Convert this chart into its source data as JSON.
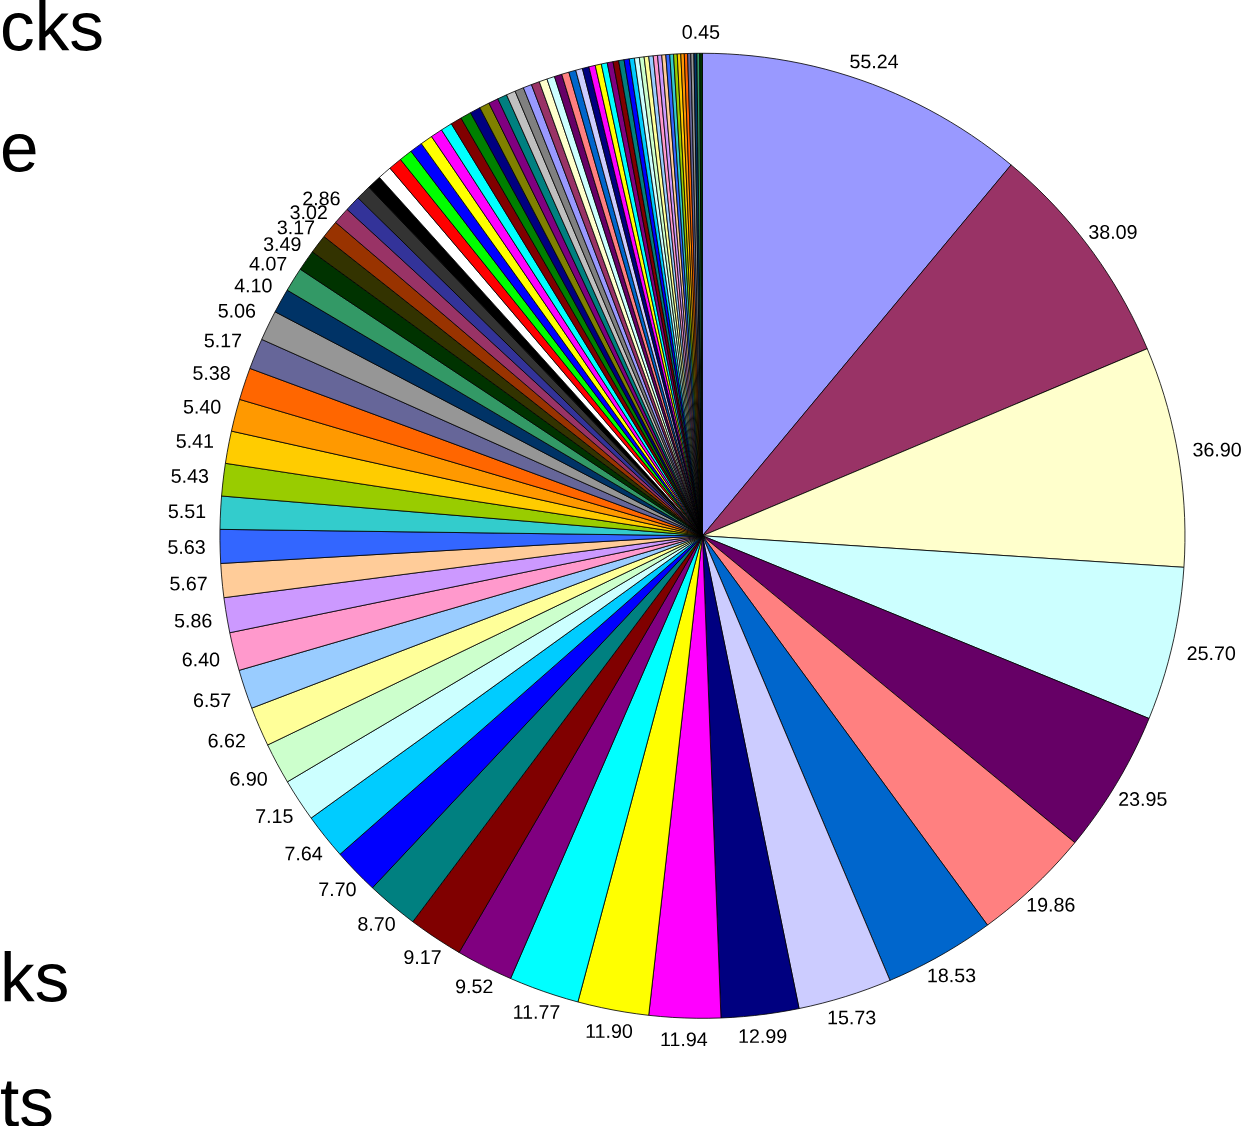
{
  "chart_data": {
    "type": "pie",
    "categories": [
      null,
      null,
      null,
      null,
      null,
      null,
      null,
      null,
      null,
      null,
      null,
      null,
      null,
      null,
      null,
      null,
      null,
      null,
      null,
      null,
      null,
      null,
      null,
      null,
      null,
      null,
      null,
      null,
      null,
      null,
      null,
      null,
      null,
      null,
      null,
      null,
      null,
      null,
      null,
      null,
      null,
      null,
      null,
      null,
      null,
      null,
      null,
      null,
      null,
      null,
      null,
      null,
      null,
      null,
      null,
      null,
      null,
      null,
      null,
      null,
      null,
      null,
      null,
      null,
      null,
      null,
      null,
      null,
      null,
      null,
      null,
      null,
      null,
      null,
      null,
      null,
      null,
      null,
      null,
      null,
      null,
      null,
      null,
      null,
      null,
      null,
      null,
      null,
      null,
      null,
      null
    ],
    "values": [
      55.24,
      38.09,
      36.9,
      25.7,
      23.95,
      19.86,
      18.53,
      15.73,
      12.99,
      11.94,
      11.9,
      11.77,
      9.52,
      9.17,
      8.7,
      7.7,
      7.64,
      7.15,
      6.9,
      6.62,
      6.57,
      6.4,
      5.86,
      5.67,
      5.63,
      5.51,
      5.43,
      5.41,
      5.4,
      5.38,
      5.17,
      5.06,
      4.1,
      4.07,
      3.49,
      3.17,
      3.02,
      2.86,
      2.63,
      2.5,
      2.38,
      2.31,
      2.25,
      2.2,
      2.12,
      2.05,
      1.98,
      1.91,
      1.85,
      1.8,
      1.74,
      1.69,
      1.63,
      1.58,
      1.53,
      1.48,
      1.43,
      1.38,
      1.34,
      1.3,
      1.26,
      1.22,
      1.18,
      1.14,
      1.1,
      1.07,
      1.03,
      1.0,
      0.97,
      0.94,
      0.91,
      0.88,
      0.85,
      0.82,
      0.79,
      0.77,
      0.74,
      0.72,
      0.7,
      0.67,
      0.65,
      0.63,
      0.61,
      0.59,
      0.57,
      0.55,
      0.53,
      0.51,
      0.49,
      0.47,
      0.45
    ],
    "value_labels": [
      "55.24",
      "38.09",
      "36.90",
      "25.70",
      "23.95",
      "19.86",
      "18.53",
      "15.73",
      "12.99",
      "11.94",
      "11.90",
      "11.77",
      "9.52",
      "9.17",
      "8.70",
      "7.70",
      "7.64",
      "7.15",
      "6.90",
      "6.62",
      "6.57",
      "6.40",
      "5.86",
      "5.67",
      "5.63",
      "5.51",
      "5.43",
      "5.41",
      "5.40",
      "5.38",
      "5.17",
      "5.06",
      "4.10",
      "4.07",
      "3.49",
      "3.17",
      "3.02",
      "2.86",
      null,
      null,
      null,
      null,
      null,
      null,
      null,
      null,
      null,
      null,
      null,
      null,
      null,
      null,
      null,
      null,
      null,
      null,
      null,
      null,
      null,
      null,
      null,
      null,
      null,
      null,
      null,
      null,
      null,
      null,
      null,
      null,
      null,
      null,
      null,
      null,
      null,
      null,
      null,
      null,
      null,
      null,
      null,
      null,
      null,
      null,
      null,
      null,
      null,
      null,
      null,
      null,
      "0.45"
    ],
    "colors": [
      "#9999ff",
      "#993366",
      "#ffffcc",
      "#ccffff",
      "#660066",
      "#ff8080",
      "#0066cc",
      "#ccccff",
      "#000080",
      "#ff00ff",
      "#ffff00",
      "#00ffff",
      "#800080",
      "#800000",
      "#008080",
      "#0000ff",
      "#00ccff",
      "#ccffff",
      "#ccffcc",
      "#ffff99",
      "#99ccff",
      "#ff99cc",
      "#cc99ff",
      "#ffcc99",
      "#3366ff",
      "#33cccc",
      "#99cc00",
      "#ffcc00",
      "#ff9900",
      "#ff6600",
      "#666699",
      "#969696",
      "#003366",
      "#339966",
      "#003300",
      "#333300",
      "#993300",
      "#993366",
      "#333399",
      "#333333",
      "#000000",
      "#ffffff",
      "#ff0000",
      "#00ff00",
      "#0000ff",
      "#ffff00",
      "#ff00ff",
      "#00ffff",
      "#800000",
      "#008000",
      "#000080",
      "#808000",
      "#800080",
      "#008080",
      "#c0c0c0",
      "#808080",
      "#9999ff",
      "#993366",
      "#ffffcc",
      "#ccffff",
      "#660066",
      "#ff8080",
      "#0066cc",
      "#ccccff",
      "#000080",
      "#ff00ff",
      "#ffff00",
      "#00ffff",
      "#800080",
      "#800000",
      "#008080",
      "#0000ff",
      "#00ccff",
      "#ccffff",
      "#ccffcc",
      "#ffff99",
      "#99ccff",
      "#ff99cc",
      "#cc99ff",
      "#ffcc99",
      "#3366ff",
      "#33cccc",
      "#99cc00",
      "#ffcc00",
      "#ff9900",
      "#ff6600",
      "#666699",
      "#969696",
      "#003366",
      "#339966",
      "#003300"
    ],
    "annotations": [
      "cks",
      "e",
      "ks",
      "ts"
    ]
  }
}
